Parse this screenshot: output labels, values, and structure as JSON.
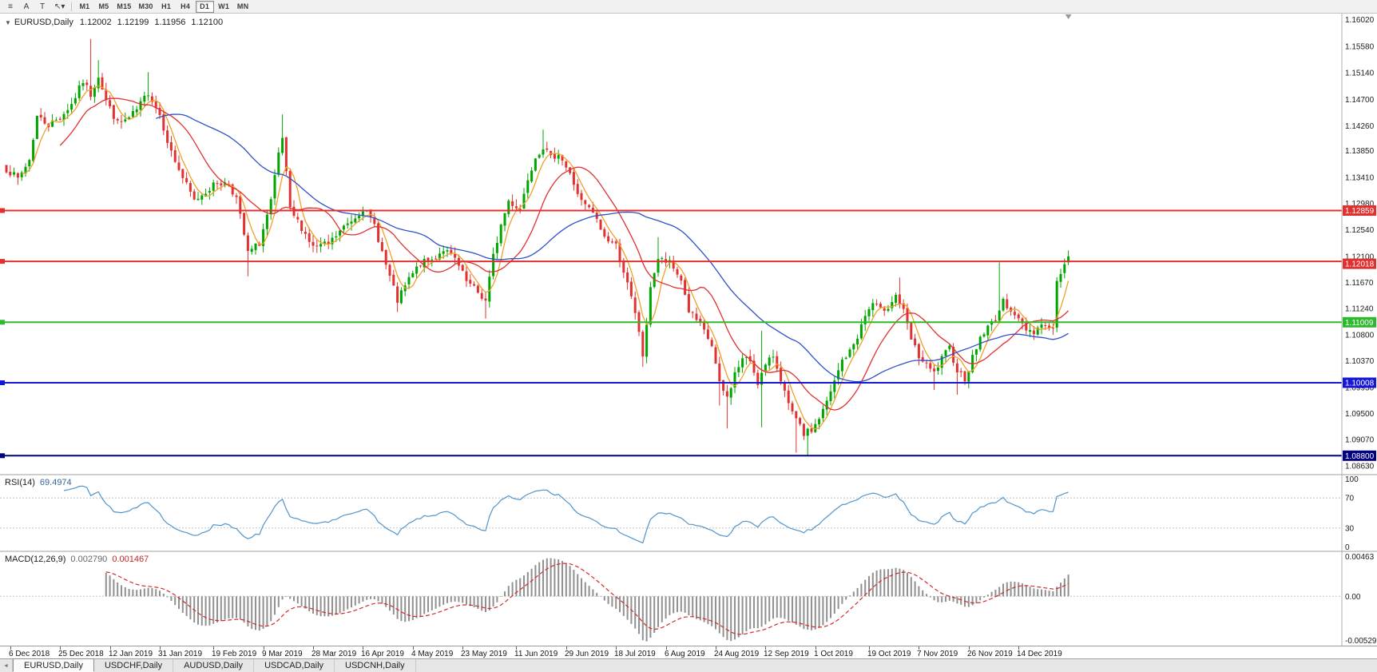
{
  "toolbar": {
    "icons": [
      {
        "name": "charts-list-icon",
        "glyph": "≡"
      },
      {
        "name": "annotation-letter-icon",
        "glyph": "A"
      },
      {
        "name": "text-tool-icon",
        "glyph": "T"
      },
      {
        "name": "cursor-tool-icon",
        "glyph": "↖▾"
      }
    ],
    "timeframes": [
      {
        "label": "M1",
        "active": false
      },
      {
        "label": "M5",
        "active": false
      },
      {
        "label": "M15",
        "active": false
      },
      {
        "label": "M30",
        "active": false
      },
      {
        "label": "H1",
        "active": false
      },
      {
        "label": "H4",
        "active": false
      },
      {
        "label": "D1",
        "active": true
      },
      {
        "label": "W1",
        "active": false
      },
      {
        "label": "MN",
        "active": false
      }
    ]
  },
  "chart_header": {
    "dropdown_icon": "▼",
    "symbol_period": "EURUSD,Daily",
    "open": "1.12002",
    "high": "1.12199",
    "low": "1.11956",
    "close": "1.12100"
  },
  "indicator_labels": {
    "rsi_name": "RSI(14)",
    "rsi_value": "69.4974",
    "macd_name": "MACD(12,26,9)",
    "macd_main": "0.002790",
    "macd_signal": "0.001467"
  },
  "tab_scroll_icon": "◄",
  "tabs": [
    {
      "label": "EURUSD,Daily",
      "active": true
    },
    {
      "label": "USDCHF,Daily",
      "active": false
    },
    {
      "label": "AUDUSD,Daily",
      "active": false
    },
    {
      "label": "USDCAD,Daily",
      "active": false
    },
    {
      "label": "USDCNH,Daily",
      "active": false
    }
  ],
  "chart_data": {
    "type": "candlestick",
    "symbol": "EURUSD",
    "timeframe": "Daily",
    "ohlc_display": {
      "open": 1.12002,
      "high": 1.12199,
      "low": 1.11956,
      "close": 1.121
    },
    "price_range": [
      1.085,
      1.1612
    ],
    "y_axis_labels": [
      "1.16020",
      "1.15580",
      "1.15140",
      "1.14700",
      "1.14260",
      "1.13850",
      "1.13410",
      "1.12980",
      "1.12540",
      "1.12100",
      "1.11670",
      "1.11240",
      "1.10800",
      "1.10370",
      "1.09930",
      "1.09500",
      "1.09070",
      "1.08630"
    ],
    "x_labels": [
      "6 Dec 2018",
      "25 Dec 2018",
      "12 Jan 2019",
      "31 Jan 2019",
      "19 Feb 2019",
      "9 Mar 2019",
      "28 Mar 2019",
      "16 Apr 2019",
      "4 May 2019",
      "23 May 2019",
      "11 Jun 2019",
      "29 Jun 2019",
      "18 Jul 2019",
      "6 Aug 2019",
      "24 Aug 2019",
      "12 Sep 2019",
      "1 Oct 2019",
      "19 Oct 2019",
      "7 Nov 2019",
      "26 Nov 2019",
      "14 Dec 2019"
    ],
    "candle_count": 278,
    "up_color": "#00a600",
    "down_color": "#e03232",
    "close_path": [
      [
        0,
        1.1355
      ],
      [
        3,
        1.1338
      ],
      [
        6,
        1.137
      ],
      [
        8,
        1.1442
      ],
      [
        11,
        1.1428
      ],
      [
        14,
        1.144
      ],
      [
        17,
        1.1462
      ],
      [
        20,
        1.15
      ],
      [
        22,
        1.1478
      ],
      [
        24,
        1.151
      ],
      [
        26,
        1.1468
      ],
      [
        29,
        1.143
      ],
      [
        32,
        1.1438
      ],
      [
        34,
        1.1452
      ],
      [
        37,
        1.1482
      ],
      [
        40,
        1.1445
      ],
      [
        43,
        1.1382
      ],
      [
        46,
        1.134
      ],
      [
        49,
        1.1302
      ],
      [
        52,
        1.1318
      ],
      [
        55,
        1.1332
      ],
      [
        58,
        1.133
      ],
      [
        60,
        1.1306
      ],
      [
        63,
        1.1215
      ],
      [
        66,
        1.1232
      ],
      [
        69,
        1.13
      ],
      [
        71,
        1.1378
      ],
      [
        72,
        1.1405
      ],
      [
        74,
        1.1286
      ],
      [
        77,
        1.1258
      ],
      [
        80,
        1.1225
      ],
      [
        84,
        1.123
      ],
      [
        88,
        1.1258
      ],
      [
        91,
        1.1276
      ],
      [
        93,
        1.129
      ],
      [
        96,
        1.1262
      ],
      [
        99,
        1.1195
      ],
      [
        102,
        1.1136
      ],
      [
        105,
        1.1172
      ],
      [
        108,
        1.1198
      ],
      [
        111,
        1.1204
      ],
      [
        114,
        1.1222
      ],
      [
        117,
        1.1205
      ],
      [
        120,
        1.1168
      ],
      [
        123,
        1.115
      ],
      [
        125,
        1.1136
      ],
      [
        127,
        1.121
      ],
      [
        129,
        1.1262
      ],
      [
        131,
        1.1302
      ],
      [
        134,
        1.1288
      ],
      [
        136,
        1.134
      ],
      [
        138,
        1.1376
      ],
      [
        140,
        1.1392
      ],
      [
        142,
        1.1372
      ],
      [
        144,
        1.1382
      ],
      [
        147,
        1.1345
      ],
      [
        150,
        1.13
      ],
      [
        153,
        1.1282
      ],
      [
        156,
        1.1242
      ],
      [
        159,
        1.1228
      ],
      [
        161,
        1.1186
      ],
      [
        163,
        1.114
      ],
      [
        165,
        1.1086
      ],
      [
        166,
        1.1046
      ],
      [
        167,
        1.1092
      ],
      [
        168,
        1.1162
      ],
      [
        170,
        1.1206
      ],
      [
        173,
        1.1198
      ],
      [
        176,
        1.1172
      ],
      [
        178,
        1.112
      ],
      [
        181,
        1.1096
      ],
      [
        184,
        1.1062
      ],
      [
        186,
        1.0998
      ],
      [
        188,
        1.0976
      ],
      [
        190,
        1.1016
      ],
      [
        192,
        1.104
      ],
      [
        194,
        1.1038
      ],
      [
        196,
        1.1002
      ],
      [
        198,
        1.1028
      ],
      [
        200,
        1.1046
      ],
      [
        202,
        1.1008
      ],
      [
        204,
        1.0962
      ],
      [
        206,
        1.0938
      ],
      [
        208,
        1.0916
      ],
      [
        210,
        1.0922
      ],
      [
        212,
        1.0942
      ],
      [
        214,
        1.0968
      ],
      [
        216,
        1.1002
      ],
      [
        218,
        1.1038
      ],
      [
        220,
        1.1052
      ],
      [
        222,
        1.1078
      ],
      [
        224,
        1.1112
      ],
      [
        226,
        1.1132
      ],
      [
        228,
        1.112
      ],
      [
        230,
        1.1128
      ],
      [
        232,
        1.1146
      ],
      [
        234,
        1.1118
      ],
      [
        236,
        1.1072
      ],
      [
        238,
        1.1044
      ],
      [
        240,
        1.1028
      ],
      [
        242,
        1.1016
      ],
      [
        244,
        1.104
      ],
      [
        246,
        1.1058
      ],
      [
        248,
        1.1022
      ],
      [
        250,
        1.1008
      ],
      [
        252,
        1.1042
      ],
      [
        254,
        1.1076
      ],
      [
        256,
        1.1092
      ],
      [
        258,
        1.1108
      ],
      [
        260,
        1.1134
      ],
      [
        262,
        1.1124
      ],
      [
        264,
        1.1104
      ],
      [
        266,
        1.109
      ],
      [
        268,
        1.1086
      ],
      [
        270,
        1.1098
      ],
      [
        272,
        1.1092
      ],
      [
        273,
        1.109
      ],
      [
        274,
        1.117
      ],
      [
        275,
        1.118
      ],
      [
        276,
        1.1196
      ],
      [
        277,
        1.121
      ]
    ],
    "spike_highs": [
      [
        22,
        1.157
      ],
      [
        24,
        1.1535
      ],
      [
        37,
        1.1515
      ],
      [
        72,
        1.1445
      ],
      [
        140,
        1.142
      ],
      [
        170,
        1.1242
      ],
      [
        197,
        1.1087
      ],
      [
        233,
        1.1175
      ],
      [
        259,
        1.12
      ]
    ],
    "spike_lows": [
      [
        63,
        1.1177
      ],
      [
        102,
        1.1118
      ],
      [
        125,
        1.1107
      ],
      [
        166,
        1.1027
      ],
      [
        186,
        1.0963
      ],
      [
        188,
        1.0925
      ],
      [
        197,
        1.0927
      ],
      [
        206,
        1.0885
      ],
      [
        209,
        1.0879
      ],
      [
        242,
        1.0989
      ],
      [
        248,
        1.0981
      ]
    ],
    "horizontal_lines": [
      {
        "price": 1.12859,
        "label": "1.12859",
        "color": "#e03131",
        "width": 2
      },
      {
        "price": 1.12018,
        "label": "1.12018",
        "color": "#e03131",
        "width": 2,
        "box_dy": 3
      },
      {
        "price": 1.11009,
        "label": "1.11009",
        "color": "#2eb82e",
        "width": 2
      },
      {
        "price": 1.10008,
        "label": "1.10008",
        "color": "#1616d6",
        "width": 2
      },
      {
        "price": 1.088,
        "label": "1.08800",
        "color": "#000080",
        "width": 2
      }
    ],
    "moving_averages": [
      {
        "period": 5,
        "color": "#f0a028"
      },
      {
        "period": 15,
        "color": "#e03131"
      },
      {
        "period": 40,
        "color": "#3050c8"
      }
    ],
    "rsi": {
      "period": 14,
      "current": 69.4974,
      "levels": [
        100,
        70,
        30,
        0
      ],
      "color": "#4f94cd"
    },
    "macd": {
      "fast": 12,
      "slow": 26,
      "signal_period": 9,
      "current_macd": 0.00279,
      "current_signal": 0.001467,
      "axis_labels": [
        "0.00463",
        "0.00",
        "-0.00529"
      ],
      "histogram_color": "#909090",
      "signal_color": "#d42a2a"
    }
  }
}
